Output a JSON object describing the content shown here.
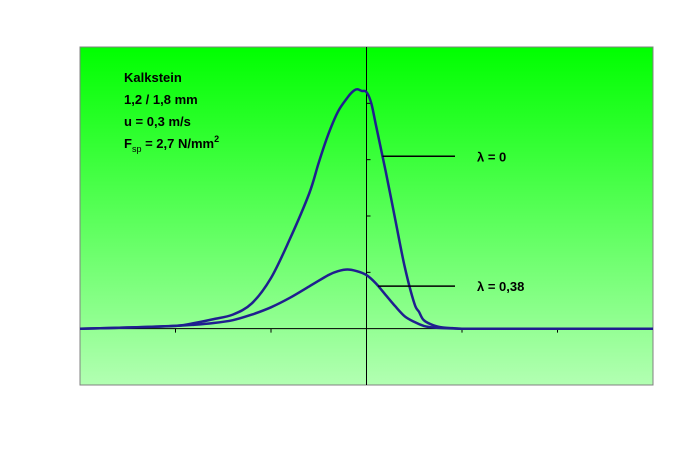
{
  "chart_data": {
    "type": "line",
    "title": "",
    "xlabel": "",
    "ylabel": "",
    "grid": false,
    "legend": "none",
    "background_gradient": [
      "#00ff00",
      "#b2ffb2"
    ],
    "line_color": "#1f1f8f",
    "xlim": [
      -3,
      3
    ],
    "ylim": [
      -1,
      5
    ],
    "annotations": {
      "material": "Kalkstein",
      "size": "1,2 / 1,8 mm",
      "speed": "u = 0,3 m/s",
      "force_main": "F",
      "force_sub": "sp",
      "force_value": " = 2,7 N/mm",
      "force_sup": "2"
    },
    "series": [
      {
        "name": "λ = 0",
        "x": [
          -3.0,
          -2.5,
          -2.0,
          -1.8,
          -1.6,
          -1.4,
          -1.2,
          -1.0,
          -0.8,
          -0.6,
          -0.5,
          -0.4,
          -0.3,
          -0.2,
          -0.15,
          -0.1,
          -0.05,
          0.0,
          0.05,
          0.1,
          0.2,
          0.3,
          0.4,
          0.5,
          0.55,
          0.6,
          0.7,
          0.8,
          0.9,
          1.0,
          1.2,
          1.5,
          2.0,
          2.5,
          3.0
        ],
        "y": [
          0.0,
          0.02,
          0.05,
          0.1,
          0.17,
          0.25,
          0.45,
          0.9,
          1.6,
          2.4,
          2.95,
          3.45,
          3.85,
          4.1,
          4.2,
          4.25,
          4.22,
          4.2,
          4.0,
          3.6,
          2.8,
          1.95,
          1.1,
          0.45,
          0.3,
          0.15,
          0.06,
          0.02,
          0.01,
          0.0,
          0.0,
          0.0,
          0.0,
          0.0,
          0.0
        ]
      },
      {
        "name": "λ = 0,38",
        "x": [
          -3.0,
          -2.5,
          -2.0,
          -1.8,
          -1.6,
          -1.4,
          -1.2,
          -1.0,
          -0.8,
          -0.6,
          -0.4,
          -0.3,
          -0.2,
          -0.1,
          0.0,
          0.1,
          0.2,
          0.3,
          0.4,
          0.5,
          0.6,
          0.7,
          0.8,
          1.0,
          1.5,
          2.0,
          2.5,
          3.0
        ],
        "y": [
          0.0,
          0.02,
          0.05,
          0.07,
          0.1,
          0.15,
          0.25,
          0.38,
          0.55,
          0.75,
          0.95,
          1.02,
          1.05,
          1.02,
          0.95,
          0.8,
          0.6,
          0.4,
          0.22,
          0.12,
          0.05,
          0.02,
          0.01,
          0.0,
          0.0,
          0.0,
          0.0,
          0.0
        ]
      }
    ]
  }
}
